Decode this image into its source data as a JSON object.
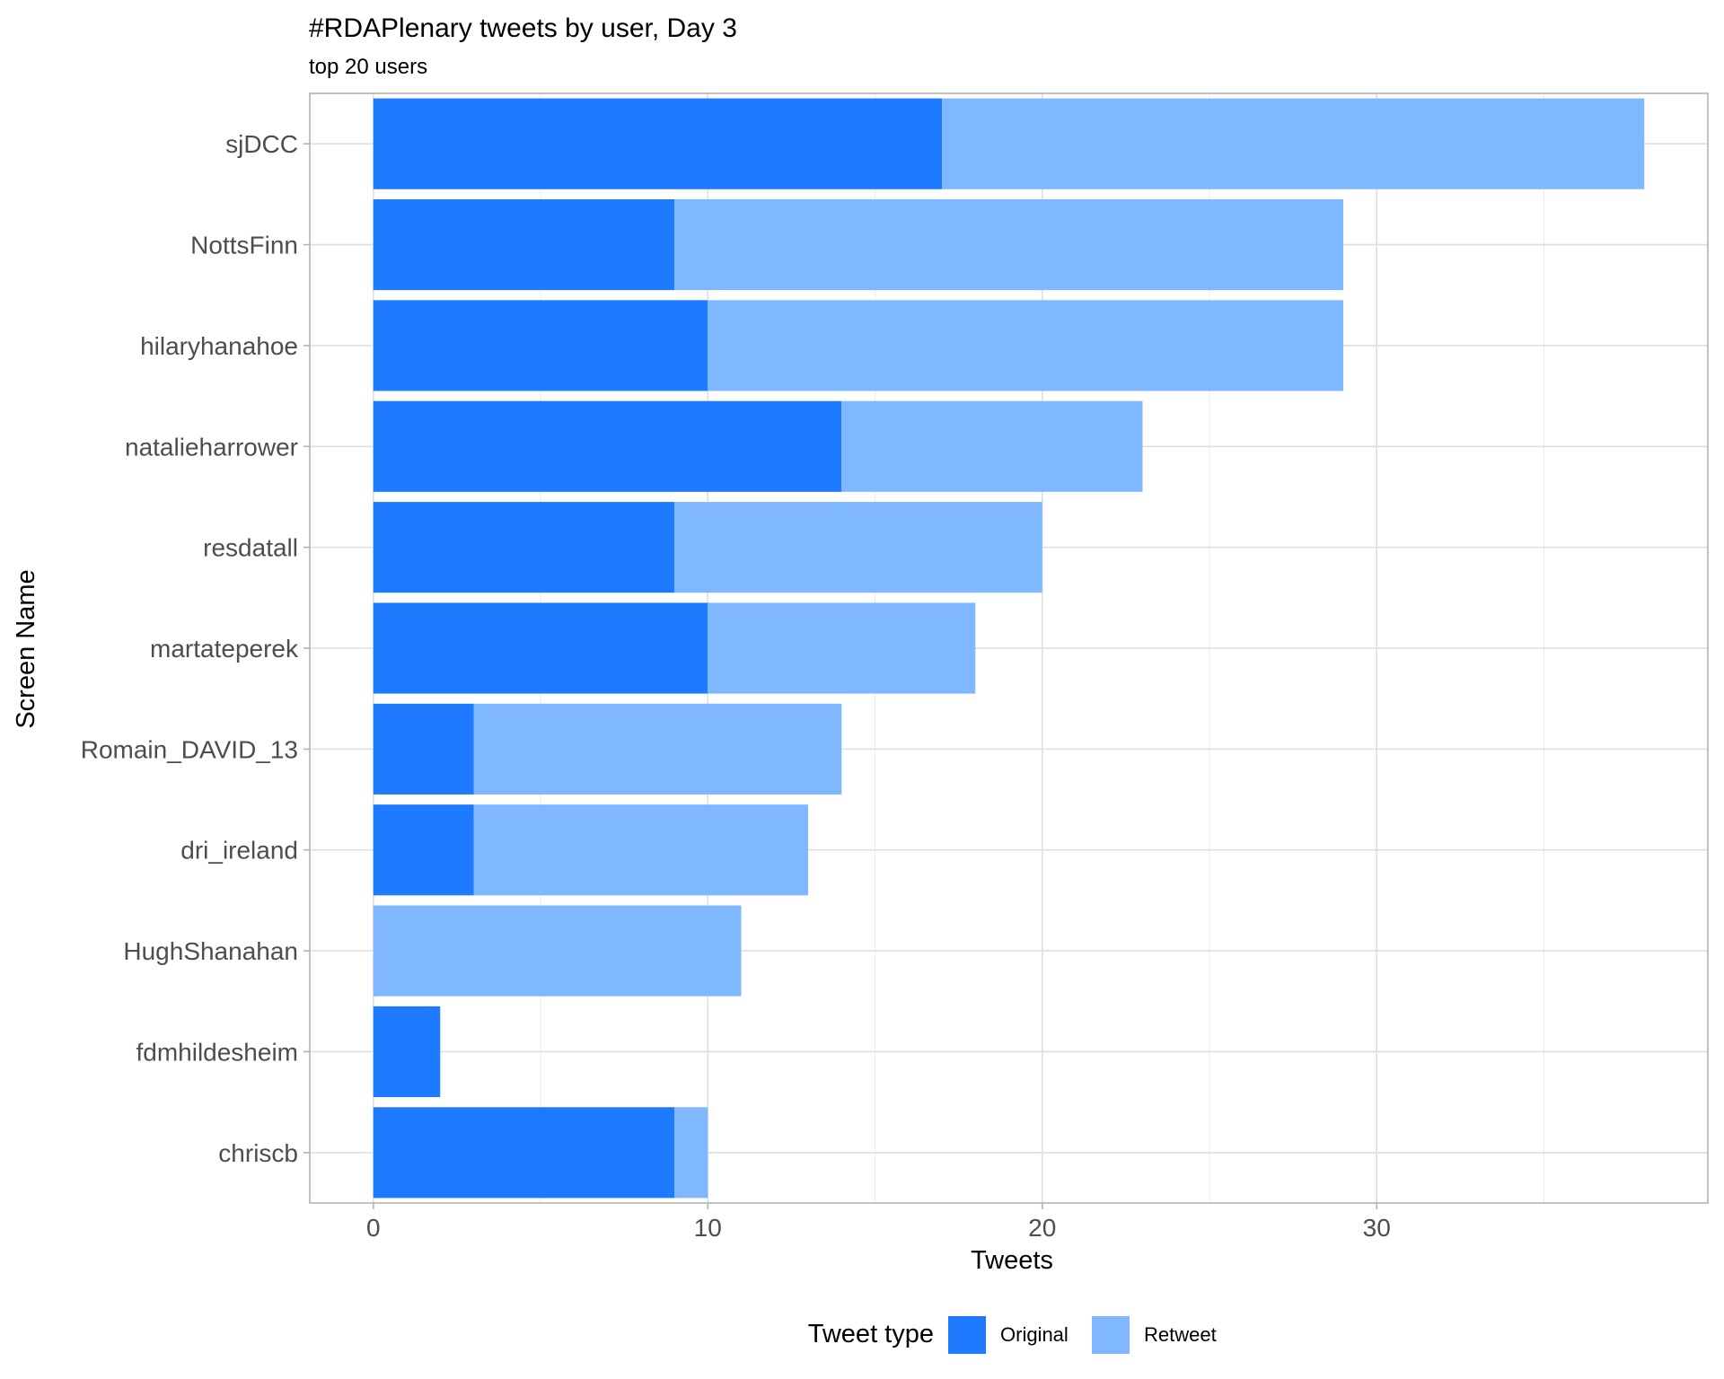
{
  "chart_data": {
    "type": "bar",
    "orientation": "horizontal",
    "stacked": true,
    "title": "#RDAPlenary tweets by user, Day 3",
    "subtitle": "top 20 users",
    "xlabel": "Tweets",
    "ylabel": "Screen Name",
    "xlim": [
      -1.9,
      39.9
    ],
    "xticks": [
      0,
      10,
      20,
      30
    ],
    "grid": true,
    "legend": {
      "title": "Tweet type",
      "placement": "bottom",
      "entries": [
        "Original",
        "Retweet"
      ]
    },
    "categories": [
      "sjDCC",
      "NottsFinn",
      "hilaryhanahoe",
      "natalieharrower",
      "resdatall",
      "martateperek",
      "Romain_DAVID_13",
      "dri_ireland",
      "HughShanahan",
      "fdmhildesheim",
      "chriscb"
    ],
    "series": [
      {
        "name": "Original",
        "color": "#1e7bff",
        "values": [
          17,
          9,
          10,
          14,
          9,
          10,
          3,
          3,
          0,
          2,
          9
        ]
      },
      {
        "name": "Retweet",
        "color": "#7fb8ff",
        "values": [
          21,
          20,
          19,
          9,
          11,
          8,
          11,
          10,
          11,
          0,
          1
        ]
      }
    ]
  }
}
